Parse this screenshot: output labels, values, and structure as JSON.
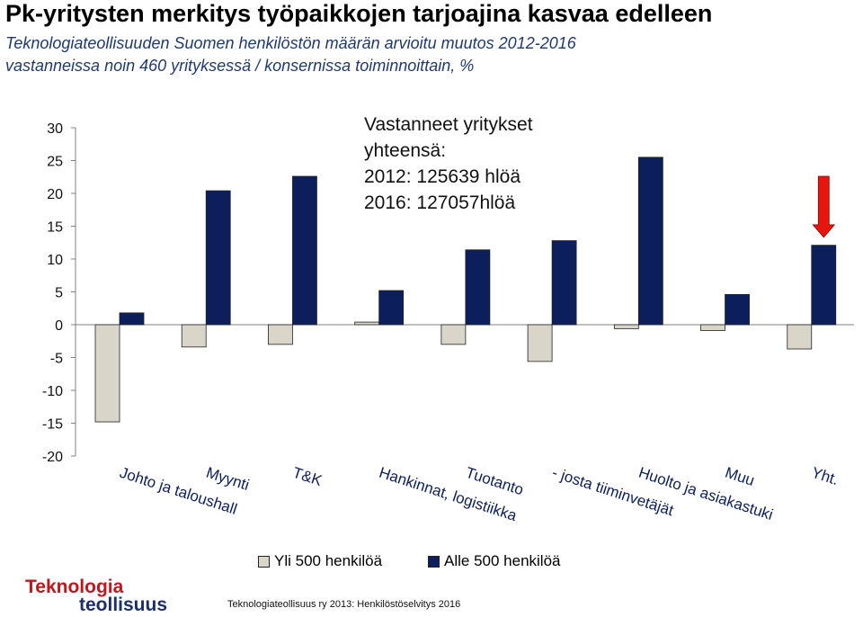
{
  "header": {
    "title": "Pk-yritysten merkitys työpaikkojen tarjoajina kasvaa edelleen",
    "subtitle_line1": "Teknologiateollisuuden Suomen henkilöstön määrän arvioitu muutos 2012-2016",
    "subtitle_line2": "vastanneissa noin 460 yrityksessä / konsernissa toiminnoittain, %"
  },
  "annotation": {
    "line1": "Vastanneet yritykset",
    "line2": "yhteensä:",
    "line3": "2012: 125639 hlöä",
    "line4": "2016: 127057hlöä"
  },
  "legend": {
    "item1": "Yli 500 henkilöä",
    "item2": "Alle 500 henkilöä"
  },
  "footer": {
    "source": "Teknologiateollisuus ry 2013:  Henkilöstöselvitys 2016",
    "logo_line1": "Teknologia",
    "logo_line2": "teollisuus"
  },
  "colors": {
    "series_large": "#d9d5c8",
    "series_small": "#0c1f5c",
    "arrow": "#e8150e",
    "axis": "#808080"
  },
  "chart_data": {
    "type": "bar",
    "title": "",
    "xlabel": "",
    "ylabel": "",
    "ylim": [
      -20,
      30
    ],
    "yticks": [
      30,
      25,
      20,
      15,
      10,
      5,
      0,
      -5,
      -10,
      -15,
      -20
    ],
    "categories": [
      "Johto ja taloushall",
      "Myynti",
      "T&K",
      "Hankinnat, logistiikka",
      "Tuotanto",
      "- josta tiiminvetäjät",
      "Huolto ja asiakastuki",
      "Muu",
      "Yht."
    ],
    "series": [
      {
        "name": "Yli 500 henkilöä",
        "values": [
          -14.8,
          -3.4,
          -3.0,
          0.4,
          -3.0,
          -5.6,
          -0.6,
          -0.9,
          -3.7
        ]
      },
      {
        "name": "Alle 500 henkilöä",
        "values": [
          1.8,
          20.4,
          22.6,
          5.2,
          11.4,
          12.8,
          25.5,
          4.6,
          12.1
        ]
      }
    ],
    "arrow_annotation": {
      "category": "Yht.",
      "from": 22.6,
      "to": 13.3
    },
    "legend_position": "bottom",
    "grid": false
  }
}
